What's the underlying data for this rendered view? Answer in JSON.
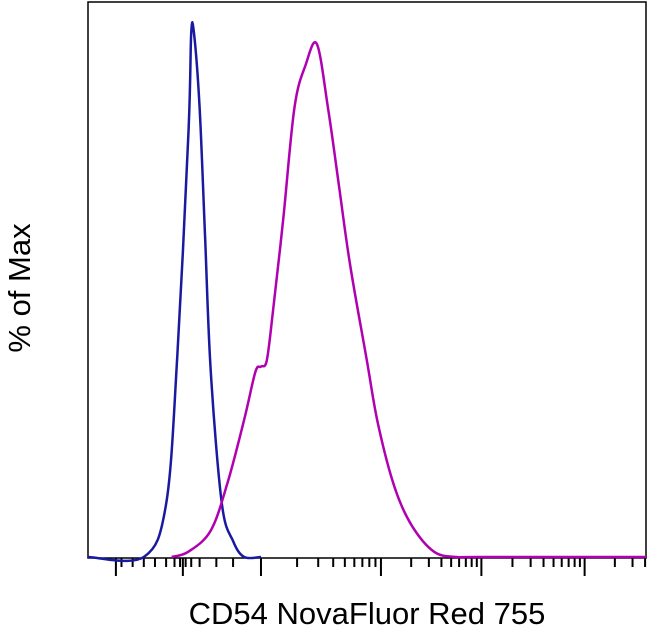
{
  "chart_data": {
    "type": "line",
    "title": "",
    "xlabel": "CD54 NovaFluor Red 755",
    "ylabel": "% of Max",
    "x_scale": "log-like (biexponential)",
    "ylim": [
      0,
      100
    ],
    "grid": false,
    "legend": "none",
    "series": [
      {
        "color": "#1a1aa0",
        "x": [
          0.0,
          0.1,
          0.14,
          0.16,
          0.18,
          0.185,
          0.19,
          0.2,
          0.21,
          0.22,
          0.24,
          0.26,
          0.28,
          0.31
        ],
        "values": [
          0,
          0,
          10,
          38,
          80,
          99,
          99,
          85,
          60,
          35,
          10,
          3,
          0,
          0
        ]
      },
      {
        "color": "#b000b0",
        "x": [
          0.15,
          0.18,
          0.22,
          0.25,
          0.28,
          0.3,
          0.31,
          0.32,
          0.33,
          0.35,
          0.37,
          0.39,
          0.41,
          0.43,
          0.45,
          0.47,
          0.5,
          0.52,
          0.55,
          0.58,
          0.62,
          0.66,
          0.7,
          1.0
        ],
        "values": [
          0,
          1,
          5,
          14,
          26,
          35,
          36,
          37,
          45,
          64,
          85,
          93,
          97,
          85,
          70,
          55,
          37,
          25,
          13,
          6,
          1,
          0,
          0,
          0
        ]
      }
    ]
  }
}
